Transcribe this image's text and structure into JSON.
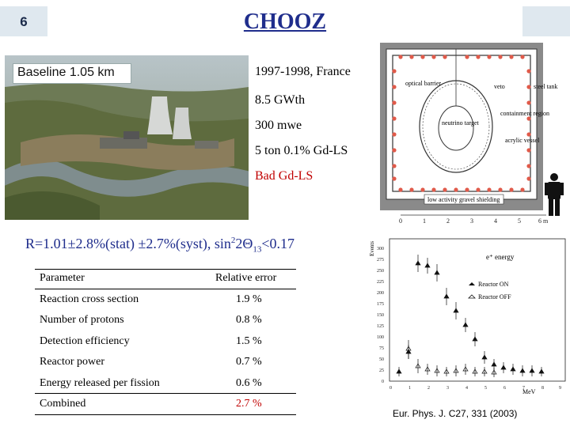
{
  "slide_number": "6",
  "title": "CHOOZ",
  "photo": {
    "label": "Baseline 1.05 km"
  },
  "info": [
    "1997-1998, France",
    "8.5 GWth",
    "300 mwe",
    "5 ton 0.1% Gd-LS",
    "Bad Gd-LS"
  ],
  "detector": {
    "labels": {
      "optical_barrier": "optical barrier",
      "veto": "veto",
      "steel_tank": "steel tank",
      "neutrino_target": "neutrino target",
      "containment_region": "containment region",
      "acrylic_vessel": "acrylic vessel",
      "shielding": "low activity gravel shielding"
    },
    "scale": [
      "0",
      "1",
      "2",
      "3",
      "4",
      "5",
      "6 m"
    ]
  },
  "summary": {
    "part1": "R=1.01±2.8%(stat) ±2.7%(syst),  sin",
    "sup": "2",
    "part2": "2Θ",
    "sub": "13",
    "part3": "<0.17"
  },
  "table": {
    "header": {
      "param": "Parameter",
      "error": "Relative error"
    },
    "rows": [
      {
        "param": "Reaction cross section",
        "error": "1.9 %"
      },
      {
        "param": "Number of protons",
        "error": "0.8 %"
      },
      {
        "param": "Detection efficiency",
        "error": "1.5 %"
      },
      {
        "param": "Reactor power",
        "error": "0.7 %"
      },
      {
        "param": "Energy released per fission",
        "error": "0.6 %"
      },
      {
        "param": "Combined",
        "error": "2.7 %"
      }
    ]
  },
  "plot": {
    "ylabel": "Events",
    "xlabel": "MeV",
    "title": "e⁺ energy",
    "legend": [
      "Reactor ON",
      "Reactor OFF"
    ],
    "yticks": [
      "0",
      "25",
      "50",
      "75",
      "100",
      "125",
      "150",
      "175",
      "200",
      "225",
      "250",
      "275",
      "300"
    ],
    "xticks": [
      "0",
      "1",
      "2",
      "3",
      "4",
      "5",
      "6",
      "7",
      "8",
      "9"
    ]
  },
  "citation": "Eur. Phys. J. C27, 331 (2003)"
}
